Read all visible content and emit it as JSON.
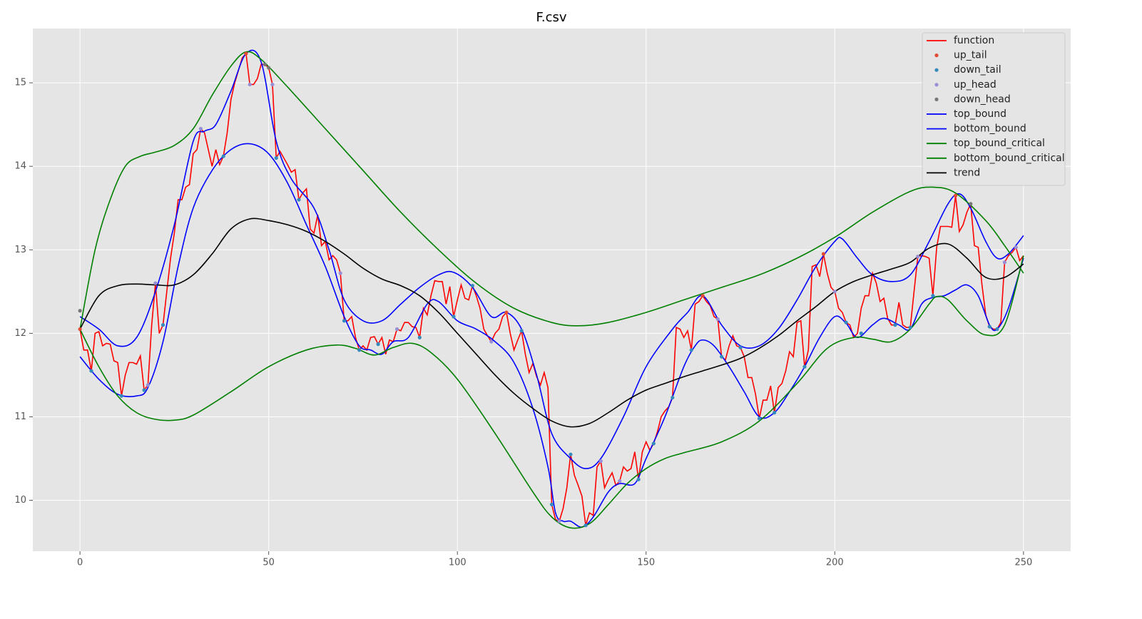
{
  "chart_data": {
    "type": "line",
    "title": "F.csv",
    "xlim": [
      -12.5,
      262.5
    ],
    "ylim": [
      9.39,
      15.65
    ],
    "xticks": [
      0,
      50,
      100,
      150,
      200,
      250
    ],
    "yticks": [
      10,
      11,
      12,
      13,
      14,
      15
    ],
    "grid": true,
    "legend": "upper right",
    "series": [
      {
        "name": "function",
        "type": "line",
        "color": "#ff0000",
        "x": [
          0,
          1,
          2,
          3,
          4,
          5,
          6,
          7,
          8,
          9,
          10,
          11,
          12,
          13,
          14,
          15,
          16,
          17,
          18,
          19,
          20,
          21,
          22,
          23,
          24,
          25,
          26,
          27,
          28,
          29,
          30,
          31,
          32,
          33,
          34,
          35,
          36,
          37,
          38,
          39,
          40,
          41,
          42,
          43,
          44,
          45,
          46,
          47,
          48,
          49,
          50,
          51,
          52,
          53,
          54,
          55,
          56,
          57,
          58,
          59,
          60,
          61,
          62,
          63,
          64,
          65,
          66,
          67,
          68,
          69,
          70,
          71,
          72,
          73,
          74,
          75,
          76,
          77,
          78,
          79,
          80,
          81,
          82,
          83,
          84,
          85,
          86,
          87,
          88,
          89,
          90,
          91,
          92,
          93,
          94,
          95,
          96,
          97,
          98,
          99,
          100,
          101,
          102,
          103,
          104,
          105,
          106,
          107,
          108,
          109,
          110,
          111,
          112,
          113,
          114,
          115,
          116,
          117,
          118,
          119,
          120,
          121,
          122,
          123,
          124,
          125,
          126,
          127,
          128,
          129,
          130,
          131,
          132,
          133,
          134,
          135,
          136,
          137,
          138,
          139,
          140,
          141,
          142,
          143,
          144,
          145,
          146,
          147,
          148,
          149,
          150,
          151,
          152,
          153,
          154,
          155,
          156,
          157,
          158,
          159,
          160,
          161,
          162,
          163,
          164,
          165,
          166,
          167,
          168,
          169,
          170,
          171,
          172,
          173,
          174,
          175,
          176,
          177,
          178,
          179,
          180,
          181,
          182,
          183,
          184,
          185,
          186,
          187,
          188,
          189,
          190,
          191,
          192,
          193,
          194,
          195,
          196,
          197,
          198,
          199,
          200,
          201,
          202,
          203,
          204,
          205,
          206,
          207,
          208,
          209,
          210,
          211,
          212,
          213,
          214,
          215,
          216,
          217,
          218,
          219,
          220,
          221,
          222,
          223,
          224,
          225,
          226,
          227,
          228,
          229,
          230,
          231,
          232,
          233,
          234,
          235,
          236,
          237,
          238,
          239,
          240,
          241,
          242,
          243,
          244,
          245,
          246,
          247,
          248,
          249,
          250
        ],
        "values": [
          12.05,
          11.8,
          11.8,
          11.55,
          12.0,
          12.02,
          11.85,
          11.88,
          11.87,
          11.67,
          11.65,
          11.25,
          11.5,
          11.65,
          11.65,
          11.63,
          11.73,
          11.32,
          11.38,
          12.1,
          12.6,
          12.0,
          12.1,
          12.5,
          12.9,
          13.2,
          13.6,
          13.6,
          13.75,
          13.78,
          14.15,
          14.2,
          14.45,
          14.4,
          14.2,
          14.0,
          14.2,
          14.02,
          14.12,
          14.4,
          14.8,
          15.0,
          15.15,
          15.3,
          15.35,
          14.98,
          14.98,
          15.05,
          15.22,
          15.22,
          15.18,
          14.98,
          14.1,
          14.18,
          14.1,
          14.02,
          13.93,
          13.96,
          13.6,
          13.68,
          13.73,
          13.25,
          13.2,
          13.42,
          13.05,
          13.1,
          12.88,
          12.93,
          12.88,
          12.72,
          12.15,
          12.15,
          12.2,
          11.95,
          11.8,
          11.85,
          11.8,
          11.95,
          11.96,
          11.87,
          11.95,
          11.75,
          11.92,
          11.9,
          12.05,
          12.03,
          12.13,
          12.13,
          12.08,
          12.07,
          11.95,
          12.3,
          12.22,
          12.45,
          12.63,
          12.62,
          12.62,
          12.35,
          12.56,
          12.2,
          12.4,
          12.58,
          12.42,
          12.4,
          12.57,
          12.45,
          12.3,
          12.05,
          11.97,
          11.9,
          12.0,
          12.05,
          12.2,
          12.25,
          12.0,
          11.8,
          11.92,
          12.03,
          11.75,
          11.53,
          11.64,
          11.48,
          11.38,
          11.53,
          11.35,
          9.95,
          9.77,
          9.75,
          9.9,
          10.15,
          10.55,
          10.3,
          10.18,
          10.05,
          9.7,
          9.85,
          9.82,
          10.4,
          10.47,
          10.15,
          10.25,
          10.33,
          10.18,
          10.23,
          10.4,
          10.35,
          10.38,
          10.58,
          10.25,
          10.58,
          10.7,
          10.6,
          10.68,
          10.82,
          11.0,
          11.07,
          11.12,
          11.23,
          12.07,
          12.05,
          11.95,
          12.03,
          11.8,
          12.35,
          12.38,
          12.45,
          12.38,
          12.33,
          12.2,
          12.17,
          11.72,
          11.68,
          11.85,
          11.97,
          11.85,
          11.83,
          11.72,
          11.47,
          11.47,
          11.27,
          10.98,
          11.2,
          11.2,
          11.37,
          11.05,
          11.35,
          11.4,
          11.55,
          11.78,
          11.72,
          12.13,
          12.15,
          11.6,
          11.8,
          12.8,
          12.82,
          12.68,
          12.95,
          12.72,
          12.55,
          12.5,
          12.3,
          12.25,
          12.13,
          12.1,
          11.95,
          12.0,
          12.3,
          12.45,
          12.45,
          12.72,
          12.6,
          12.38,
          12.42,
          12.18,
          12.1,
          12.1,
          12.37,
          12.1,
          12.07,
          12.07,
          12.5,
          12.92,
          12.93,
          12.92,
          12.9,
          12.45,
          13.03,
          13.28,
          13.28,
          13.28,
          13.27,
          13.65,
          13.22,
          13.3,
          13.45,
          13.55,
          13.05,
          13.03,
          12.58,
          12.22,
          12.08,
          12.05,
          12.05,
          12.13,
          12.85,
          12.93,
          12.97,
          13.03,
          12.87,
          12.93
        ]
      },
      {
        "name": "up_tail",
        "type": "scatter",
        "color": "#e24a33",
        "x": [
          0,
          44,
          113,
          165,
          197,
          232
        ],
        "values": [
          12.05,
          15.35,
          12.25,
          12.45,
          12.95,
          13.65
        ]
      },
      {
        "name": "down_tail",
        "type": "scatter",
        "color": "#348abd",
        "x": [
          3,
          11,
          17,
          22,
          38,
          52,
          58,
          70,
          74,
          79,
          90,
          99,
          104,
          117,
          125,
          130,
          134,
          148,
          152,
          157,
          162,
          170,
          175,
          180,
          184,
          192,
          203,
          207,
          216,
          220,
          226,
          241,
          243
        ],
        "values": [
          11.55,
          11.25,
          11.32,
          12.1,
          14.12,
          14.1,
          13.6,
          12.15,
          11.8,
          11.87,
          11.95,
          12.2,
          12.57,
          12.03,
          9.95,
          10.55,
          9.7,
          10.25,
          10.68,
          11.23,
          11.8,
          11.72,
          11.83,
          10.98,
          11.05,
          11.6,
          12.13,
          12.0,
          12.1,
          12.07,
          12.45,
          12.08,
          12.05
        ]
      },
      {
        "name": "up_head",
        "type": "scatter",
        "color": "#988ed5",
        "x": [
          18,
          20,
          32,
          45,
          51,
          69,
          84,
          109,
          127,
          138,
          143,
          169,
          200,
          222,
          245,
          248
        ],
        "values": [
          11.38,
          12.6,
          14.45,
          14.98,
          14.98,
          12.72,
          12.05,
          11.9,
          9.75,
          10.47,
          10.23,
          12.17,
          12.5,
          12.92,
          12.85,
          13.03
        ]
      },
      {
        "name": "down_head",
        "type": "scatter",
        "color": "#777777",
        "x": [
          0,
          49,
          50,
          236
        ],
        "values": [
          12.27,
          15.22,
          15.18,
          13.55
        ]
      },
      {
        "name": "top_bound",
        "type": "line",
        "color": "#0000ff",
        "x": [
          0,
          5,
          10,
          15,
          20,
          25,
          30,
          33,
          36,
          40,
          44,
          48,
          52,
          56,
          62,
          66,
          70,
          75,
          80,
          85,
          90,
          95,
          99,
          104,
          109,
          113,
          117,
          121,
          125,
          130,
          134,
          138,
          144,
          150,
          157,
          161,
          165,
          170,
          175,
          180,
          185,
          190,
          195,
          200,
          202,
          206,
          210,
          215,
          220,
          225,
          230,
          233,
          236,
          240,
          243,
          246,
          250
        ],
        "values": [
          12.2,
          12.05,
          11.85,
          11.95,
          12.5,
          13.3,
          14.3,
          14.42,
          14.5,
          14.9,
          15.35,
          15.25,
          14.3,
          13.85,
          13.5,
          13.0,
          12.4,
          12.15,
          12.15,
          12.35,
          12.55,
          12.7,
          12.73,
          12.55,
          12.2,
          12.25,
          12.05,
          11.5,
          10.8,
          10.5,
          10.38,
          10.5,
          11.0,
          11.6,
          12.05,
          12.25,
          12.45,
          12.1,
          11.85,
          11.85,
          12.05,
          12.4,
          12.8,
          13.1,
          13.13,
          12.9,
          12.7,
          12.62,
          12.7,
          13.1,
          13.55,
          13.67,
          13.5,
          13.1,
          12.9,
          12.95,
          13.17
        ]
      },
      {
        "name": "bottom_bound",
        "type": "line",
        "color": "#0000ff",
        "x": [
          0,
          5,
          10,
          15,
          18,
          22,
          26,
          30,
          35,
          40,
          45,
          50,
          55,
          60,
          65,
          70,
          74,
          77,
          80,
          83,
          87,
          92,
          95,
          100,
          105,
          110,
          115,
          120,
          124,
          126,
          128,
          130,
          133,
          136,
          140,
          143,
          147,
          150,
          155,
          160,
          163,
          165,
          168,
          172,
          176,
          180,
          184,
          188,
          192,
          196,
          200,
          203,
          206,
          210,
          213,
          217,
          220,
          223,
          226,
          229,
          232,
          235,
          238,
          241,
          243,
          246,
          250
        ],
        "values": [
          11.72,
          11.45,
          11.27,
          11.25,
          11.35,
          11.9,
          12.8,
          13.5,
          13.95,
          14.2,
          14.27,
          14.15,
          13.8,
          13.3,
          12.8,
          12.2,
          11.85,
          11.8,
          11.75,
          11.9,
          11.95,
          12.35,
          12.38,
          12.15,
          12.05,
          11.9,
          11.65,
          11.1,
          10.4,
          9.85,
          9.75,
          9.75,
          9.68,
          9.8,
          10.1,
          10.2,
          10.2,
          10.5,
          11.0,
          11.6,
          11.85,
          11.92,
          11.85,
          11.6,
          11.3,
          11.0,
          11.05,
          11.3,
          11.6,
          11.95,
          12.2,
          12.12,
          11.95,
          12.1,
          12.18,
          12.1,
          12.05,
          12.35,
          12.43,
          12.45,
          12.52,
          12.58,
          12.45,
          12.1,
          12.05,
          12.3,
          12.9
        ]
      },
      {
        "name": "top_bound_critical",
        "type": "line",
        "color": "#008000",
        "x": [
          0,
          4,
          8,
          12,
          16,
          20,
          25,
          30,
          35,
          40,
          44,
          48,
          55,
          65,
          75,
          85,
          95,
          105,
          115,
          125,
          132,
          140,
          150,
          160,
          170,
          180,
          190,
          200,
          210,
          220,
          226,
          232,
          240,
          245,
          250
        ],
        "values": [
          12.05,
          13.0,
          13.6,
          14.0,
          14.12,
          14.17,
          14.25,
          14.45,
          14.85,
          15.2,
          15.37,
          15.28,
          14.95,
          14.45,
          13.95,
          13.45,
          13.0,
          12.6,
          12.3,
          12.13,
          12.09,
          12.13,
          12.25,
          12.4,
          12.55,
          12.7,
          12.9,
          13.15,
          13.45,
          13.7,
          13.75,
          13.68,
          13.35,
          13.05,
          12.72
        ]
      },
      {
        "name": "bottom_bound_critical",
        "type": "line",
        "color": "#008000",
        "x": [
          0,
          5,
          10,
          15,
          20,
          25,
          30,
          40,
          50,
          60,
          68,
          73,
          78,
          83,
          88,
          93,
          100,
          110,
          120,
          125,
          130,
          135,
          140,
          145,
          150,
          155,
          160,
          170,
          180,
          190,
          198,
          205,
          210,
          215,
          220,
          225,
          227,
          230,
          235,
          240,
          245,
          250
        ],
        "values": [
          12.05,
          11.6,
          11.25,
          11.05,
          10.97,
          10.96,
          11.02,
          11.3,
          11.6,
          11.8,
          11.86,
          11.82,
          11.74,
          11.83,
          11.88,
          11.77,
          11.45,
          10.8,
          10.1,
          9.8,
          9.67,
          9.72,
          9.95,
          10.2,
          10.38,
          10.5,
          10.57,
          10.7,
          10.95,
          11.4,
          11.82,
          11.95,
          11.93,
          11.9,
          12.05,
          12.35,
          12.44,
          12.4,
          12.15,
          11.98,
          12.1,
          12.93
        ]
      },
      {
        "name": "trend",
        "type": "line",
        "color": "#000000",
        "x": [
          0,
          5,
          10,
          15,
          20,
          25,
          30,
          35,
          40,
          45,
          50,
          55,
          60,
          65,
          70,
          75,
          80,
          85,
          90,
          95,
          100,
          105,
          110,
          115,
          120,
          125,
          130,
          135,
          140,
          145,
          150,
          155,
          160,
          165,
          170,
          175,
          180,
          185,
          190,
          195,
          200,
          205,
          210,
          215,
          220,
          225,
          230,
          235,
          240,
          245,
          250
        ],
        "values": [
          12.05,
          12.45,
          12.57,
          12.59,
          12.58,
          12.58,
          12.7,
          12.95,
          13.25,
          13.37,
          13.35,
          13.3,
          13.22,
          13.1,
          12.95,
          12.78,
          12.65,
          12.57,
          12.45,
          12.25,
          12.0,
          11.75,
          11.5,
          11.28,
          11.1,
          10.95,
          10.88,
          10.92,
          11.05,
          11.2,
          11.32,
          11.4,
          11.48,
          11.55,
          11.62,
          11.7,
          11.82,
          11.97,
          12.15,
          12.32,
          12.5,
          12.62,
          12.7,
          12.77,
          12.85,
          13.02,
          13.07,
          12.9,
          12.67,
          12.67,
          12.83
        ]
      }
    ]
  }
}
